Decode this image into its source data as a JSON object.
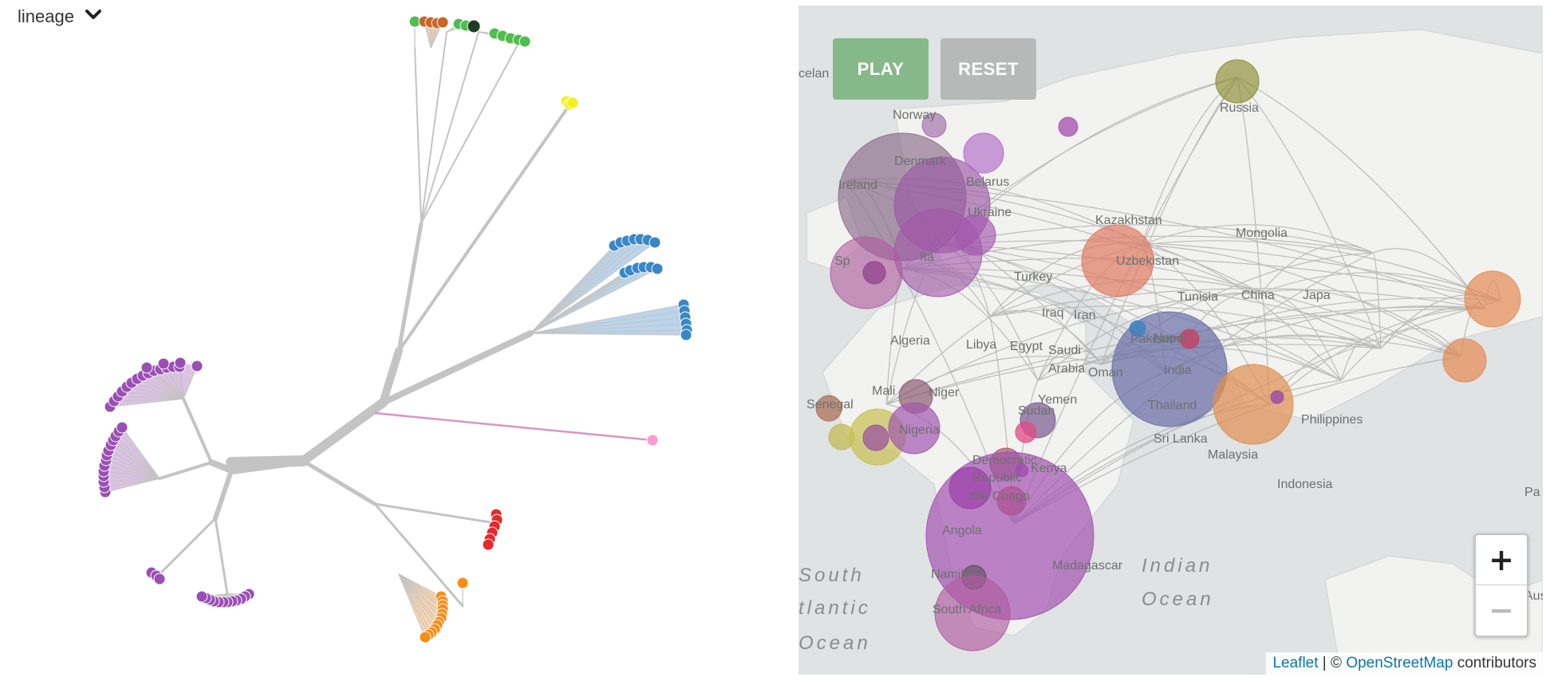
{
  "controls": {
    "lineage_label": "lineage",
    "play_label": "PLAY",
    "reset_label": "RESET",
    "zoom_in": "+",
    "zoom_out": "−"
  },
  "attribution": {
    "leaflet": "Leaflet",
    "separator": " | © ",
    "osm": "OpenStreetMap",
    "suffix": " contributors"
  },
  "map_labels": [
    "celan",
    "Norway",
    "Russia",
    "Denmark",
    "Ireland",
    "Belarus",
    "Ukraine",
    "Kazakhstan",
    "Mongolia",
    "Sp",
    "Ita",
    "Turkey",
    "Uzbekistan",
    "Tunisia",
    "China",
    "Japa",
    "Iraq",
    "Iran",
    "Algeria",
    "Libya",
    "Egypt",
    "Saudi",
    "Arabia",
    "Oman",
    "Pakistan",
    "Nepal",
    "India",
    "Mali",
    "Niger",
    "Thailand",
    "Philippines",
    "Senegal",
    "Sudan",
    "Yemen",
    "Nigeria",
    "Sri Lanka",
    "Malaysia",
    "Democratic",
    "Republic",
    "the Congo",
    "Kenya",
    "Indonesia",
    "Pa",
    "Angola",
    "Madagascar",
    "Namib",
    "South Africa",
    "South",
    "tlantic",
    "Ocean",
    "Indian",
    "Ocean",
    "Austra"
  ],
  "lineage_colors": {
    "purple": "#9b4fb5",
    "blue": "#3a87c8",
    "red": "#e8282a",
    "orange": "#ff8a14",
    "green": "#4fbe4f",
    "yellow": "#f3f01c",
    "brown": "#c8662a",
    "pink": "#ff9ad4",
    "dark": "#1f3d22",
    "branch": "#c4c4c4"
  },
  "icons": {
    "dropdown": "chevron-down-icon"
  }
}
